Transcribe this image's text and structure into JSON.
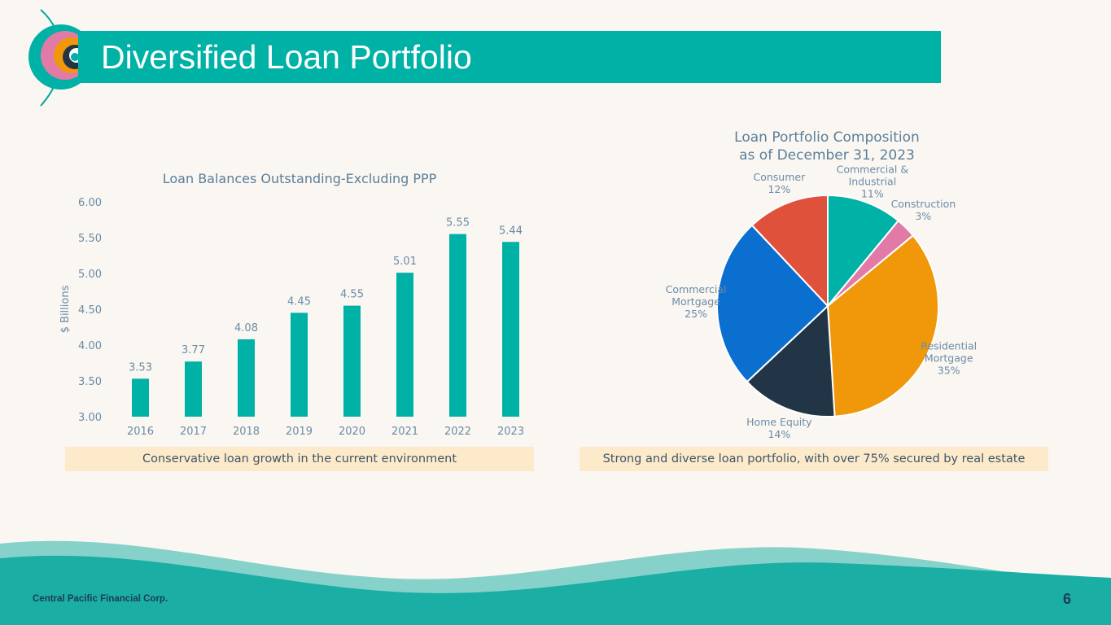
{
  "header": {
    "title": "Diversified Loan Portfolio"
  },
  "colors": {
    "title_bar": "#00b1a6",
    "bar": "#00b1a6",
    "axis_text": "#6a8ca6",
    "caption_bg": "#fdeacb"
  },
  "chart_data": [
    {
      "type": "bar",
      "title": "Loan Balances Outstanding-Excluding PPP",
      "ylabel": "$ Billions",
      "xlabel": "",
      "categories": [
        "2016",
        "2017",
        "2018",
        "2019",
        "2020",
        "2021",
        "2022",
        "2023"
      ],
      "values": [
        3.53,
        3.77,
        4.08,
        4.45,
        4.55,
        5.01,
        5.55,
        5.44
      ],
      "data_labels": [
        "3.53",
        "3.77",
        "4.08",
        "4.45",
        "4.55",
        "5.01",
        "5.55",
        "5.44"
      ],
      "ylim": [
        3.0,
        6.0
      ],
      "yticks": [
        "3.00",
        "3.50",
        "4.00",
        "4.50",
        "5.00",
        "5.50",
        "6.00"
      ],
      "ytick_values": [
        3.0,
        3.5,
        4.0,
        4.5,
        5.0,
        5.5,
        6.0
      ],
      "grid": false,
      "color": "#00b1a6"
    },
    {
      "type": "pie",
      "title_lines": [
        "Loan Portfolio Composition",
        "as of December 31, 2023"
      ],
      "slices": [
        {
          "label_lines": [
            "Commercial &",
            "Industrial"
          ],
          "pct_label": "11%",
          "value": 11,
          "color": "#00b1a6"
        },
        {
          "label_lines": [
            "Construction"
          ],
          "pct_label": "3%",
          "value": 3,
          "color": "#e27aa8"
        },
        {
          "label_lines": [
            "Residential",
            "Mortgage"
          ],
          "pct_label": "35%",
          "value": 35,
          "color": "#f0980a"
        },
        {
          "label_lines": [
            "Home Equity"
          ],
          "pct_label": "14%",
          "value": 14,
          "color": "#223547"
        },
        {
          "label_lines": [
            "Commercial",
            "Mortgage"
          ],
          "pct_label": "25%",
          "value": 25,
          "color": "#0a6fcf"
        },
        {
          "label_lines": [
            "Consumer"
          ],
          "pct_label": "12%",
          "value": 12,
          "color": "#e0513c"
        }
      ]
    }
  ],
  "captions": {
    "left": "Conservative loan growth in the current environment",
    "right": "Strong and diverse loan portfolio, with over 75% secured by real estate"
  },
  "footer": {
    "company": "Central Pacific Financial Corp.",
    "page_number": "6"
  }
}
